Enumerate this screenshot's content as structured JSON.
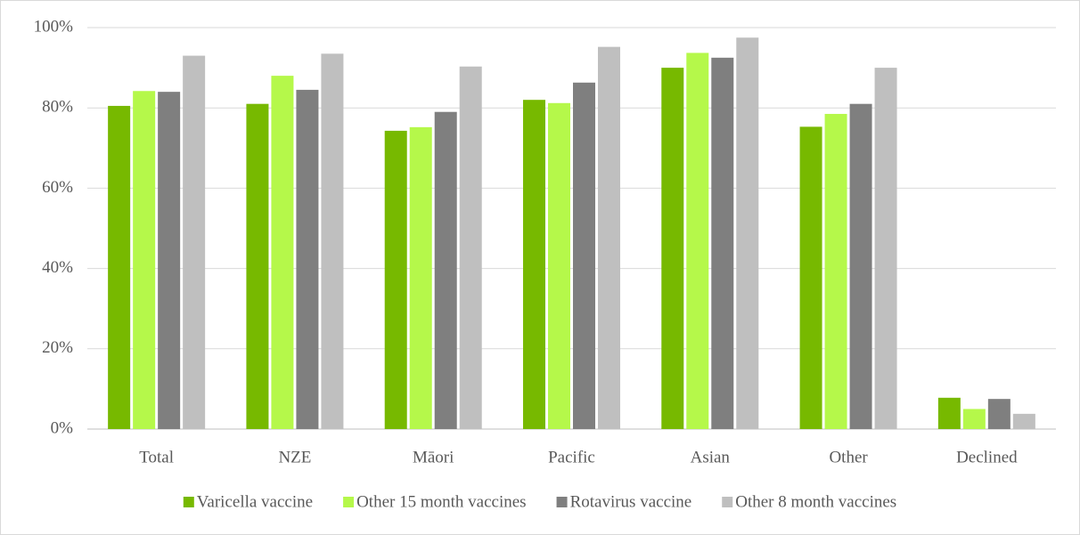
{
  "chart_data": {
    "type": "bar",
    "categories": [
      "Total",
      "NZE",
      "Māori",
      "Pacific",
      "Asian",
      "Other",
      "Declined"
    ],
    "series": [
      {
        "name": "Varicella vaccine",
        "color": "#77b900",
        "values": [
          80.5,
          81,
          74.3,
          82,
          90,
          75.3,
          7.8
        ]
      },
      {
        "name": "Other 15 month vaccines",
        "color": "#b5f84a",
        "values": [
          84.2,
          88,
          75.2,
          81.2,
          93.7,
          78.5,
          5
        ]
      },
      {
        "name": "Rotavirus vaccine",
        "color": "#7f7f7f",
        "values": [
          84,
          84.5,
          79,
          86.3,
          92.5,
          81,
          7.5
        ]
      },
      {
        "name": "Other 8 month vaccines",
        "color": "#bfbfbf",
        "values": [
          93,
          93.5,
          90.3,
          95.2,
          97.5,
          90,
          3.8
        ]
      }
    ],
    "ylim": [
      0,
      100
    ],
    "yticks": [
      {
        "value": 0,
        "label": "0%"
      },
      {
        "value": 20,
        "label": "20%"
      },
      {
        "value": 40,
        "label": "40%"
      },
      {
        "value": 60,
        "label": "60%"
      },
      {
        "value": 80,
        "label": "80%"
      },
      {
        "value": 100,
        "label": "100%"
      }
    ],
    "grid": true,
    "legend": "bottom"
  }
}
